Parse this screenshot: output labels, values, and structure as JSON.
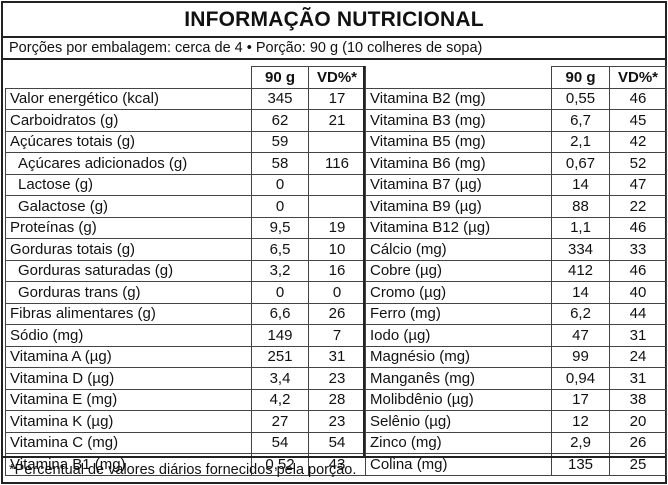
{
  "title": "INFORMAÇÃO NUTRICIONAL",
  "portion_line": "Porções por embalagem: cerca de 4 • Porção: 90 g (10 colheres de sopa)",
  "headers": {
    "amount": "90 g",
    "dv": "VD%*"
  },
  "left_rows": [
    {
      "name": "Valor energético (kcal)",
      "amount": "345",
      "dv": "17",
      "sub": false
    },
    {
      "name": "Carboidratos (g)",
      "amount": "62",
      "dv": "21",
      "sub": false
    },
    {
      "name": "Açúcares totais (g)",
      "amount": "59",
      "dv": "",
      "sub": false
    },
    {
      "name": "Açúcares adicionados (g)",
      "amount": "58",
      "dv": "116",
      "sub": true
    },
    {
      "name": "Lactose (g)",
      "amount": "0",
      "dv": "",
      "sub": true
    },
    {
      "name": "Galactose (g)",
      "amount": "0",
      "dv": "",
      "sub": true
    },
    {
      "name": "Proteínas (g)",
      "amount": "9,5",
      "dv": "19",
      "sub": false
    },
    {
      "name": "Gorduras totais (g)",
      "amount": "6,5",
      "dv": "10",
      "sub": false
    },
    {
      "name": "Gorduras saturadas (g)",
      "amount": "3,2",
      "dv": "16",
      "sub": true
    },
    {
      "name": "Gorduras trans (g)",
      "amount": "0",
      "dv": "0",
      "sub": true
    },
    {
      "name": "Fibras alimentares (g)",
      "amount": "6,6",
      "dv": "26",
      "sub": false
    },
    {
      "name": "Sódio (mg)",
      "amount": "149",
      "dv": "7",
      "sub": false
    },
    {
      "name": "Vitamina A (µg)",
      "amount": "251",
      "dv": "31",
      "sub": false
    },
    {
      "name": "Vitamina D (µg)",
      "amount": "3,4",
      "dv": "23",
      "sub": false
    },
    {
      "name": "Vitamina E (mg)",
      "amount": "4,2",
      "dv": "28",
      "sub": false
    },
    {
      "name": "Vitamina K (µg)",
      "amount": "27",
      "dv": "23",
      "sub": false
    },
    {
      "name": "Vitamina C (mg)",
      "amount": "54",
      "dv": "54",
      "sub": false
    },
    {
      "name": "Vitamina B1 (mg)",
      "amount": "0,52",
      "dv": "43",
      "sub": false
    }
  ],
  "right_rows": [
    {
      "name": "Vitamina B2 (mg)",
      "amount": "0,55",
      "dv": "46"
    },
    {
      "name": "Vitamina B3 (mg)",
      "amount": "6,7",
      "dv": "45"
    },
    {
      "name": "Vitamina B5 (mg)",
      "amount": "2,1",
      "dv": "42"
    },
    {
      "name": "Vitamina B6 (mg)",
      "amount": "0,67",
      "dv": "52"
    },
    {
      "name": "Vitamina B7 (µg)",
      "amount": "14",
      "dv": "47"
    },
    {
      "name": "Vitamina B9 (µg)",
      "amount": "88",
      "dv": "22"
    },
    {
      "name": "Vitamina B12 (µg)",
      "amount": "1,1",
      "dv": "46"
    },
    {
      "name": "Cálcio (mg)",
      "amount": "334",
      "dv": "33"
    },
    {
      "name": "Cobre (µg)",
      "amount": "412",
      "dv": "46"
    },
    {
      "name": "Cromo (µg)",
      "amount": "14",
      "dv": "40"
    },
    {
      "name": "Ferro (mg)",
      "amount": "6,2",
      "dv": "44"
    },
    {
      "name": "Iodo (µg)",
      "amount": "47",
      "dv": "31"
    },
    {
      "name": "Magnésio (mg)",
      "amount": "99",
      "dv": "24"
    },
    {
      "name": "Manganês (mg)",
      "amount": "0,94",
      "dv": "31"
    },
    {
      "name": "Molibdênio (µg)",
      "amount": "17",
      "dv": "38"
    },
    {
      "name": "Selênio (µg)",
      "amount": "12",
      "dv": "20"
    },
    {
      "name": "Zinco (mg)",
      "amount": "2,9",
      "dv": "26"
    },
    {
      "name": "Colina (mg)",
      "amount": "135",
      "dv": "25"
    }
  ],
  "footnote": "*Percentual de valores diários fornecidos pela porção."
}
